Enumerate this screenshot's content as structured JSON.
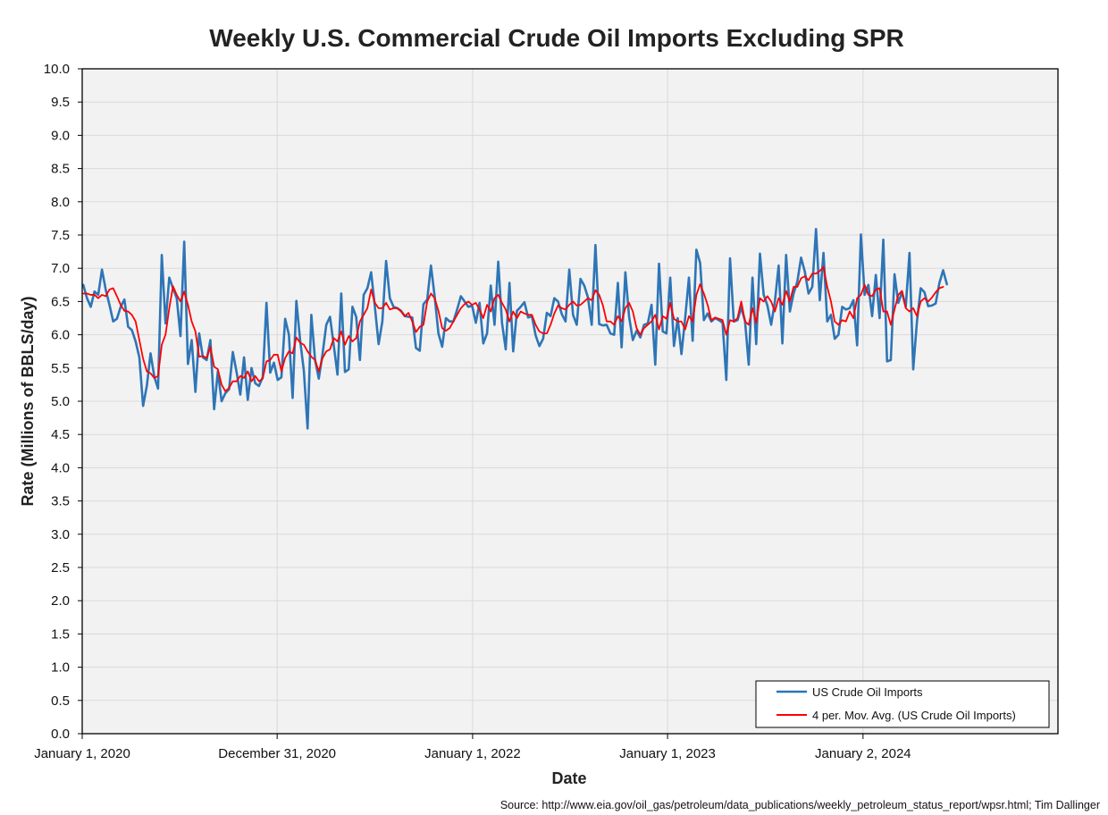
{
  "colors": {
    "plot_background": "#f2f2f2",
    "gridline": "#d9d9d9",
    "imports": "#2e75b6",
    "moving_average": "#ff0000",
    "text": "#222222"
  },
  "source_note": "Source: http://www.eia.gov/oil_gas/petroleum/data_publications/weekly_petroleum_status_report/wpsr.html; Tim Dallinger",
  "chart_data": {
    "type": "line",
    "title": "Weekly U.S. Commercial Crude Oil Imports Excluding SPR",
    "xlabel": "Date",
    "ylabel": "Rate (Millions of BBLS/day)",
    "ylim": [
      0,
      10
    ],
    "y_ticks": [
      "0.0",
      "0.5",
      "1.0",
      "1.5",
      "2.0",
      "2.5",
      "3.0",
      "3.5",
      "4.0",
      "4.5",
      "5.0",
      "5.5",
      "6.0",
      "6.5",
      "7.0",
      "7.5",
      "8.0",
      "8.5",
      "9.0",
      "9.5",
      "10.0"
    ],
    "xlim": [
      "2020-01-01",
      "2025-01-01"
    ],
    "x_ticks": [
      {
        "date": "2020-01-01",
        "label": "January 1, 2020"
      },
      {
        "date": "2020-12-31",
        "label": "December 31, 2020"
      },
      {
        "date": "2022-01-01",
        "label": "January 1, 2022"
      },
      {
        "date": "2023-01-01",
        "label": "January 1, 2023"
      },
      {
        "date": "2024-01-02",
        "label": "January 2, 2024"
      }
    ],
    "grid": true,
    "legend_position": "bottom-right",
    "x_start": "2020-01-03",
    "x_step_days": 7,
    "series": [
      {
        "name": "US Crude Oil Imports",
        "color": "#2e75b6",
        "values": [
          6.75,
          6.55,
          6.42,
          6.65,
          6.6,
          6.98,
          6.68,
          6.45,
          6.2,
          6.24,
          6.42,
          6.53,
          6.12,
          6.07,
          5.9,
          5.66,
          4.93,
          5.23,
          5.72,
          5.37,
          5.19,
          7.2,
          6.17,
          6.86,
          6.7,
          6.55,
          5.98,
          7.4,
          5.56,
          5.92,
          5.14,
          6.02,
          5.66,
          5.62,
          5.92,
          4.88,
          5.45,
          5.0,
          5.12,
          5.18,
          5.74,
          5.44,
          5.1,
          5.66,
          5.02,
          5.5,
          5.27,
          5.23,
          5.36,
          6.48,
          5.43,
          5.58,
          5.32,
          5.36,
          6.24,
          6.0,
          5.05,
          6.51,
          5.92,
          5.46,
          4.59,
          6.3,
          5.62,
          5.34,
          5.71,
          6.15,
          6.27,
          5.84,
          5.4,
          6.62,
          5.44,
          5.48,
          6.42,
          6.27,
          5.62,
          6.6,
          6.7,
          6.94,
          6.42,
          5.86,
          6.2,
          7.11,
          6.55,
          6.42,
          6.4,
          6.36,
          6.28,
          6.27,
          6.26,
          5.8,
          5.76,
          6.46,
          6.53,
          7.04,
          6.57,
          6.02,
          5.82,
          6.25,
          6.2,
          6.2,
          6.38,
          6.58,
          6.5,
          6.42,
          6.44,
          6.18,
          6.48,
          5.87,
          6.02,
          6.74,
          6.15,
          7.1,
          6.18,
          5.78,
          6.78,
          5.75,
          6.36,
          6.42,
          6.49,
          6.26,
          6.28,
          5.99,
          5.83,
          5.94,
          6.33,
          6.28,
          6.55,
          6.5,
          6.31,
          6.2,
          6.98,
          6.3,
          6.15,
          6.84,
          6.74,
          6.56,
          6.15,
          7.35,
          6.16,
          6.14,
          6.15,
          6.02,
          6.0,
          6.78,
          5.81,
          6.94,
          6.27,
          5.92,
          6.06,
          5.96,
          6.15,
          6.17,
          6.45,
          5.55,
          7.07,
          6.05,
          6.02,
          6.86,
          5.83,
          6.25,
          5.71,
          6.25,
          6.86,
          5.91,
          7.28,
          7.08,
          6.22,
          6.32,
          6.2,
          6.25,
          6.22,
          6.18,
          5.32,
          7.15,
          6.2,
          6.22,
          6.41,
          6.21,
          5.55,
          6.86,
          5.86,
          7.22,
          6.6,
          6.44,
          6.15,
          6.5,
          7.04,
          5.87,
          7.2,
          6.35,
          6.62,
          6.8,
          7.16,
          6.95,
          6.62,
          6.72,
          7.59,
          6.52,
          7.23,
          6.2,
          6.3,
          5.94,
          6.0,
          6.42,
          6.38,
          6.4,
          6.52,
          5.84,
          7.51,
          6.6,
          6.75,
          6.28,
          6.9,
          6.25,
          7.43,
          5.6,
          5.62,
          6.91,
          6.48,
          6.64,
          6.42,
          7.23,
          5.48,
          6.2,
          6.7,
          6.64,
          6.43,
          6.44,
          6.47,
          6.78,
          6.97,
          6.76
        ]
      },
      {
        "name": "4 per. Mov. Avg. (US Crude Oil Imports)",
        "color": "#ff0000",
        "values": [
          6.62,
          6.62,
          6.6,
          6.6,
          6.55,
          6.6,
          6.58,
          6.68,
          6.7,
          6.58,
          6.45,
          6.36,
          6.35,
          6.3,
          6.2,
          5.92,
          5.64,
          5.45,
          5.42,
          5.35,
          5.38,
          5.85,
          6.0,
          6.4,
          6.73,
          6.6,
          6.5,
          6.65,
          6.45,
          6.2,
          6.05,
          5.67,
          5.68,
          5.65,
          5.82,
          5.52,
          5.48,
          5.25,
          5.15,
          5.2,
          5.3,
          5.3,
          5.38,
          5.35,
          5.45,
          5.3,
          5.38,
          5.3,
          5.34,
          5.6,
          5.62,
          5.7,
          5.7,
          5.45,
          5.65,
          5.75,
          5.72,
          5.96,
          5.88,
          5.85,
          5.75,
          5.67,
          5.62,
          5.45,
          5.65,
          5.75,
          5.78,
          5.95,
          5.9,
          6.05,
          5.85,
          5.98,
          5.9,
          5.95,
          6.2,
          6.3,
          6.4,
          6.68,
          6.48,
          6.4,
          6.4,
          6.48,
          6.38,
          6.4,
          6.4,
          6.35,
          6.28,
          6.33,
          6.2,
          6.04,
          6.12,
          6.15,
          6.5,
          6.62,
          6.55,
          6.36,
          6.1,
          6.06,
          6.1,
          6.2,
          6.3,
          6.4,
          6.46,
          6.5,
          6.45,
          6.48,
          6.38,
          6.25,
          6.45,
          6.35,
          6.55,
          6.6,
          6.48,
          6.38,
          6.2,
          6.35,
          6.25,
          6.35,
          6.32,
          6.3,
          6.3,
          6.15,
          6.05,
          6.02,
          6.02,
          6.15,
          6.32,
          6.44,
          6.4,
          6.38,
          6.45,
          6.5,
          6.44,
          6.45,
          6.5,
          6.55,
          6.52,
          6.67,
          6.6,
          6.44,
          6.2,
          6.2,
          6.15,
          6.28,
          6.2,
          6.4,
          6.48,
          6.35,
          6.1,
          6.0,
          6.1,
          6.15,
          6.2,
          6.3,
          6.08,
          6.28,
          6.24,
          6.48,
          6.24,
          6.2,
          6.2,
          6.08,
          6.28,
          6.2,
          6.6,
          6.76,
          6.62,
          6.45,
          6.22,
          6.26,
          6.24,
          6.22,
          6.0,
          6.22,
          6.2,
          6.25,
          6.5,
          6.2,
          6.15,
          6.4,
          6.18,
          6.55,
          6.5,
          6.58,
          6.5,
          6.35,
          6.55,
          6.45,
          6.66,
          6.5,
          6.72,
          6.72,
          6.85,
          6.88,
          6.82,
          6.92,
          6.92,
          6.96,
          7.02,
          6.72,
          6.5,
          6.2,
          6.15,
          6.22,
          6.2,
          6.35,
          6.25,
          6.55,
          6.6,
          6.75,
          6.6,
          6.58,
          6.68,
          6.7,
          6.35,
          6.35,
          6.15,
          6.38,
          6.6,
          6.66,
          6.4,
          6.35,
          6.4,
          6.28,
          6.5,
          6.55,
          6.5,
          6.56,
          6.64,
          6.7,
          6.72
        ]
      }
    ]
  }
}
